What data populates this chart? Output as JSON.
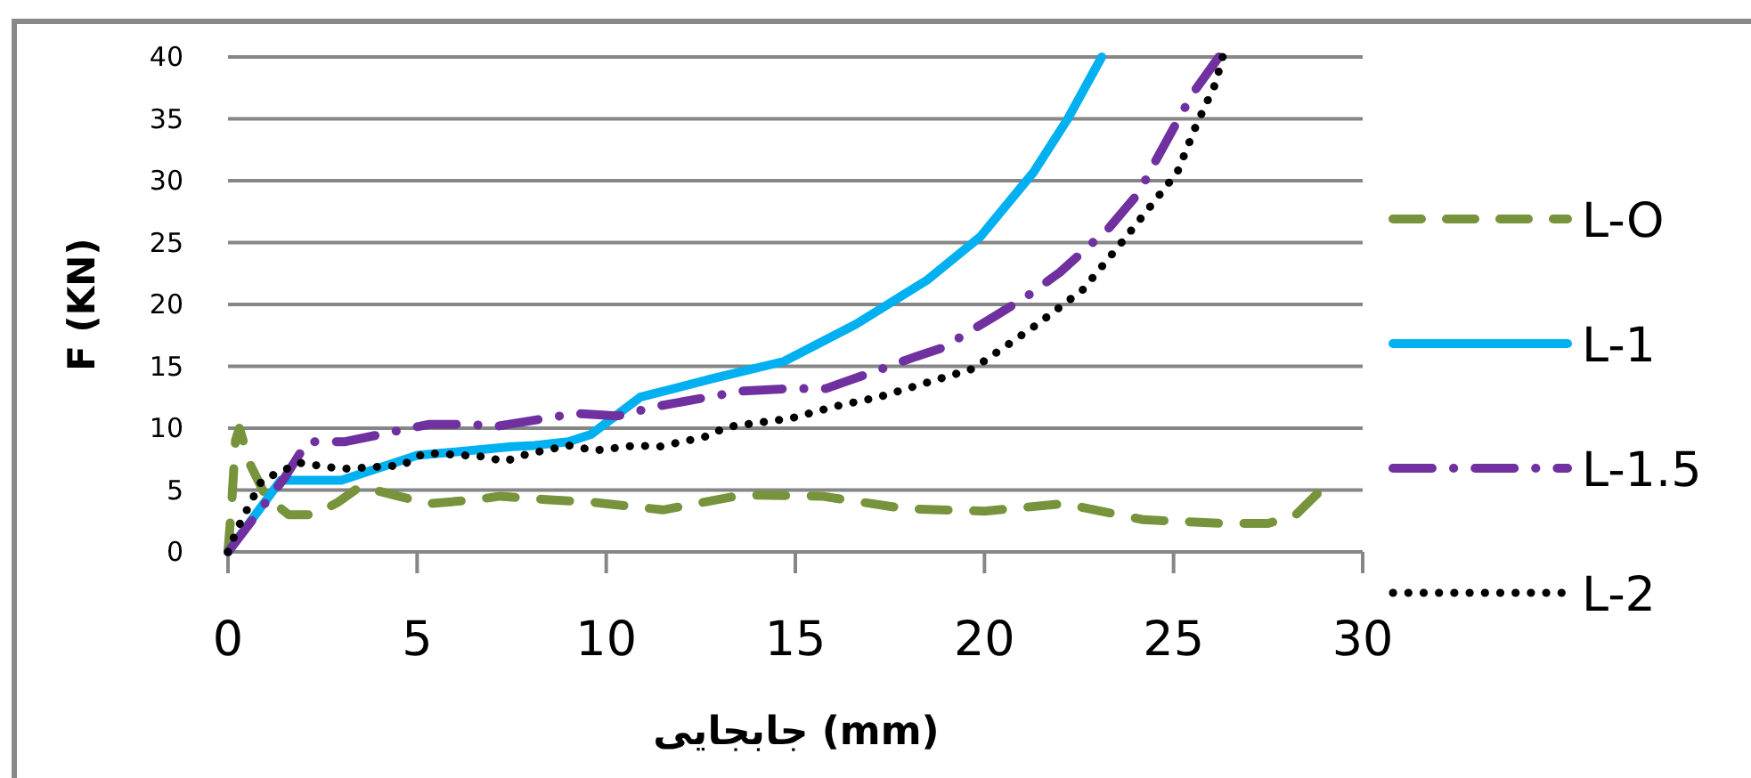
{
  "chart_data": {
    "type": "line",
    "xlabel": "جابجایی (mm)",
    "ylabel": "F (KN)",
    "xlim": [
      0,
      30
    ],
    "xticks": [
      0,
      5,
      10,
      15,
      20,
      25,
      30
    ],
    "ylim": [
      0,
      40
    ],
    "yticks": [
      0,
      5,
      10,
      15,
      20,
      25,
      30,
      35,
      40
    ],
    "grid": "y",
    "legend": "right",
    "marker": "none",
    "series": [
      {
        "name": "L-O",
        "color": "#77933c",
        "line_style": "dashed",
        "x": [
          0,
          0.1,
          0.2,
          0.3,
          0.6,
          1,
          1.6,
          2.3,
          2.9,
          3.5,
          4.5,
          5.3,
          6.5,
          7.2,
          8.5,
          9.7,
          11.5,
          13.6,
          15.7,
          17.9,
          20.0,
          22.1,
          24.2,
          26.3,
          27.5,
          28.2,
          28.8
        ],
        "values": [
          0,
          4,
          9,
          10,
          7,
          4.5,
          3,
          3,
          4,
          5.3,
          4.5,
          3.9,
          4.2,
          4.5,
          4.2,
          4.0,
          3.4,
          4.6,
          4.5,
          3.5,
          3.3,
          3.9,
          2.6,
          2.3,
          2.3,
          2.9,
          4.7
        ]
      },
      {
        "name": "L-1",
        "color": "#00b0f0",
        "line_style": "solid",
        "x": [
          0,
          1.4,
          3,
          5,
          7.5,
          8.1,
          9.0,
          9.6,
          10.9,
          12.8,
          14.7,
          16.6,
          18.5,
          19.9,
          21.3,
          22.2,
          23.1
        ],
        "values": [
          0,
          5.8,
          5.8,
          7.8,
          8.5,
          8.6,
          8.9,
          9.5,
          12.5,
          14.0,
          15.4,
          18.4,
          22.0,
          25.5,
          30.7,
          35.0,
          40
        ]
      },
      {
        "name": "L-1.5",
        "color": "#7030a0",
        "line_style": "dashdot",
        "x": [
          0,
          1.5,
          2.1,
          3.1,
          5.3,
          6.5,
          7.0,
          9.2,
          10.3,
          11.4,
          13.6,
          14.8,
          15.8,
          17.3,
          18.2,
          18.9,
          20.3,
          21.1,
          22.0,
          23.3,
          24.1,
          24.4,
          25.5,
          26.2
        ],
        "values": [
          0,
          6,
          8.9,
          8.9,
          10.3,
          10.3,
          10.1,
          11.2,
          11.0,
          11.8,
          13.0,
          13.2,
          13.2,
          14.8,
          15.8,
          16.5,
          19.1,
          20.6,
          22.6,
          26.2,
          29.1,
          30.9,
          37.0,
          40
        ]
      },
      {
        "name": "L-2",
        "color": "#000000",
        "line_style": "dotted",
        "x": [
          0,
          0.25,
          0.9,
          1.9,
          3.0,
          4.6,
          5.2,
          6.8,
          7.3,
          7.9,
          9.0,
          9.7,
          10.8,
          11.4,
          12.6,
          13.2,
          14.9,
          16.1,
          17.2,
          19.7,
          21.4,
          22.6,
          23.6,
          24.3,
          25.1,
          25.6,
          26.1,
          26.3
        ],
        "values": [
          0,
          1.9,
          5.8,
          7.2,
          6.7,
          7.0,
          8.0,
          7.7,
          7.3,
          7.9,
          8.6,
          8.2,
          8.6,
          8.5,
          9.3,
          10.1,
          10.8,
          11.8,
          12.5,
          14.8,
          18.4,
          21.2,
          24.9,
          27.6,
          30.7,
          34.5,
          37.8,
          40
        ]
      }
    ]
  }
}
